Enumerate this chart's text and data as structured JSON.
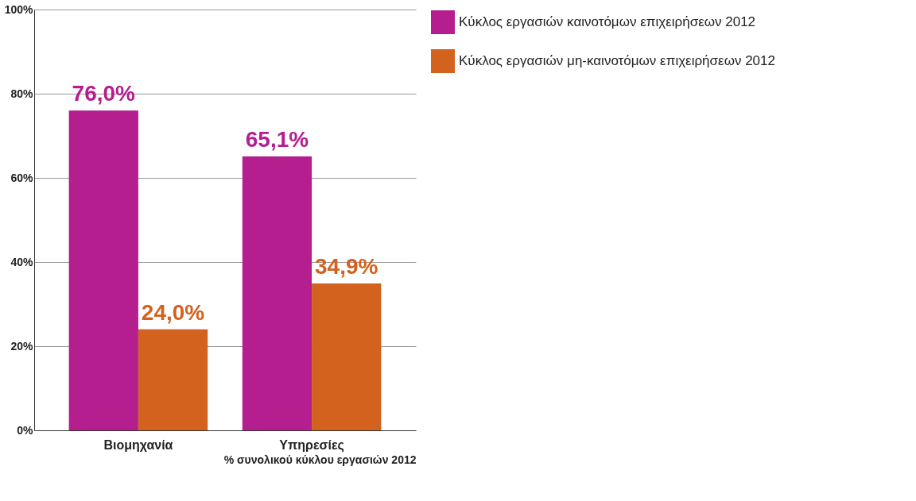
{
  "chart_data": {
    "type": "bar",
    "xlabel": "% συνολικού κύκλου εργασιών 2012",
    "categories": [
      "Βιομηχανία",
      "Υπηρεσίες"
    ],
    "series": [
      {
        "name": "Κύκλος εργασιών καινοτόμων επιχειρήσεων 2012",
        "color": "#b41e8e",
        "values": [
          76.0,
          65.1
        ],
        "value_labels": [
          "76,0%",
          "65,1%"
        ]
      },
      {
        "name": "Κύκλος εργασιών μη-καινοτόμων επιχειρήσεων 2012",
        "color": "#d2621e",
        "values": [
          24.0,
          34.9
        ],
        "value_labels": [
          "24,0%",
          "34,9%"
        ]
      }
    ],
    "ylim": [
      0,
      100
    ],
    "yticks": [
      {
        "value": 0,
        "label": "0%"
      },
      {
        "value": 20,
        "label": "20%"
      },
      {
        "value": 40,
        "label": "40%"
      },
      {
        "value": 60,
        "label": "60%"
      },
      {
        "value": 80,
        "label": "80%"
      },
      {
        "value": 100,
        "label": "100%"
      }
    ],
    "grid": "y",
    "legend": "top right"
  }
}
